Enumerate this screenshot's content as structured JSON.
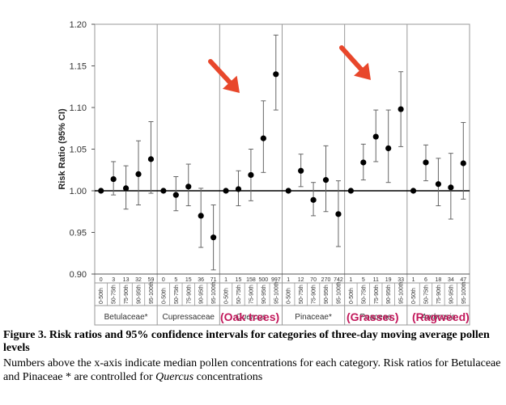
{
  "chart_data": {
    "type": "scatter",
    "ylabel": "Risk Ratio (95% CI)",
    "ylim": [
      0.9,
      1.2
    ],
    "yticks": [
      "0.90",
      "0.95",
      "1.00",
      "1.05",
      "1.10",
      "1.15",
      "1.20"
    ],
    "reference_line": 1.0,
    "percentile_labels": [
      "0-50th",
      "50-75th",
      "75-90th",
      "90-95th",
      "95-100th"
    ],
    "groups": [
      {
        "name": "Betulaceae*",
        "italic": false,
        "medians": [
          "0",
          "3",
          "13",
          "32",
          "59"
        ],
        "rr": [
          1.0,
          1.014,
          1.003,
          1.02,
          1.038
        ],
        "lo": [
          1.0,
          0.995,
          0.978,
          0.983,
          0.997
        ],
        "hi": [
          1.0,
          1.035,
          1.03,
          1.06,
          1.083
        ]
      },
      {
        "name": "Cupressaceae",
        "italic": false,
        "medians": [
          "0",
          "5",
          "15",
          "36",
          "71"
        ],
        "rr": [
          1.0,
          0.995,
          1.005,
          0.97,
          0.944
        ],
        "lo": [
          1.0,
          0.976,
          0.982,
          0.932,
          0.905
        ],
        "hi": [
          1.0,
          1.017,
          1.032,
          1.003,
          0.983
        ]
      },
      {
        "name": "Quercus",
        "italic": true,
        "medians": [
          "1",
          "15",
          "158",
          "500",
          "997"
        ],
        "rr": [
          1.0,
          1.002,
          1.019,
          1.063,
          1.14
        ],
        "lo": [
          1.0,
          0.982,
          0.988,
          1.022,
          1.097
        ],
        "hi": [
          1.0,
          1.024,
          1.05,
          1.108,
          1.187
        ]
      },
      {
        "name": "Pinaceae*",
        "italic": false,
        "medians": [
          "1",
          "12",
          "70",
          "270",
          "742"
        ],
        "rr": [
          1.0,
          1.024,
          0.989,
          1.013,
          0.972
        ],
        "lo": [
          1.0,
          1.005,
          0.97,
          0.975,
          0.933
        ],
        "hi": [
          1.0,
          1.044,
          1.01,
          1.054,
          1.012
        ]
      },
      {
        "name": "Poaceae",
        "italic": false,
        "medians": [
          "1",
          "5",
          "11",
          "19",
          "33"
        ],
        "rr": [
          1.0,
          1.034,
          1.065,
          1.051,
          1.098
        ],
        "lo": [
          1.0,
          1.013,
          1.035,
          1.01,
          1.053
        ],
        "hi": [
          1.0,
          1.056,
          1.097,
          1.097,
          1.143
        ]
      },
      {
        "name": "Ambrosia",
        "italic": true,
        "medians": [
          "1",
          "6",
          "18",
          "34",
          "47"
        ],
        "rr": [
          1.0,
          1.034,
          1.008,
          1.004,
          1.033
        ],
        "lo": [
          1.0,
          1.012,
          0.982,
          0.966,
          0.99
        ],
        "hi": [
          1.0,
          1.055,
          1.039,
          1.045,
          1.082
        ]
      }
    ],
    "annotations": [
      {
        "text": "(Oak trees)",
        "group": "Quercus"
      },
      {
        "text": "(Grasses)",
        "group": "Poaceae"
      },
      {
        "text": "(Ragweed)",
        "group": "Ambrosia"
      }
    ]
  },
  "colors": {
    "annotation": "#c2185b",
    "arrow": "#e8472b",
    "marker": "#000000",
    "errorbar": "#666666",
    "grid": "#999999"
  },
  "caption": {
    "bold": "Figure 3. Risk ratios and 95% confidence intervals for categories of three-day moving average pollen levels",
    "text_before_italic": "Numbers above the x-axis indicate median pollen concentrations for each category. Risk ratios for Betulaceae and Pinaceae * are controlled for ",
    "italic": "Quercus",
    "text_after_italic": " concentrations"
  }
}
